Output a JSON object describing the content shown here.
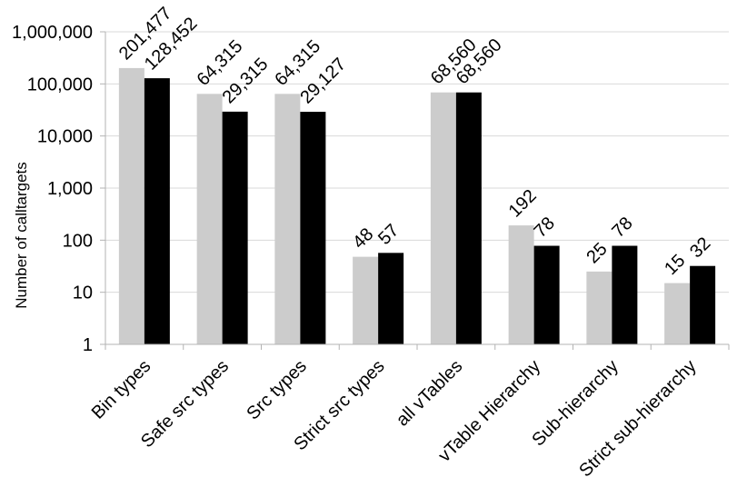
{
  "chart_data": {
    "type": "bar",
    "scale": "log",
    "ylabel": "Number of calltargets",
    "ylim": [
      1,
      1000000
    ],
    "y_ticks": [
      1,
      10,
      100,
      1000,
      10000,
      100000,
      1000000
    ],
    "y_tick_labels": [
      "1",
      "10",
      "100",
      "1,000",
      "10,000",
      "100,000",
      "1,000,000"
    ],
    "grid": true,
    "legend": "none",
    "categories": [
      "Bin types",
      "Safe src types",
      "Src types",
      "Strict src types",
      "all vTables",
      "vTable Hierarchy",
      "Sub-hierarchy",
      "Strict sub-hierarchy"
    ],
    "series": [
      {
        "color": "#cccccc",
        "values": [
          201477,
          64315,
          64315,
          48,
          68560,
          192,
          25,
          15
        ],
        "labels": [
          "201,477",
          "64,315",
          "64,315",
          "48",
          "68,560",
          "192",
          "25",
          "15"
        ]
      },
      {
        "color": "#000000",
        "values": [
          128452,
          29315,
          29127,
          57,
          68560,
          78,
          78,
          32
        ],
        "labels": [
          "128,452",
          "29,315",
          "29,127",
          "57",
          "68,560",
          "78",
          "78",
          "32"
        ]
      }
    ]
  }
}
